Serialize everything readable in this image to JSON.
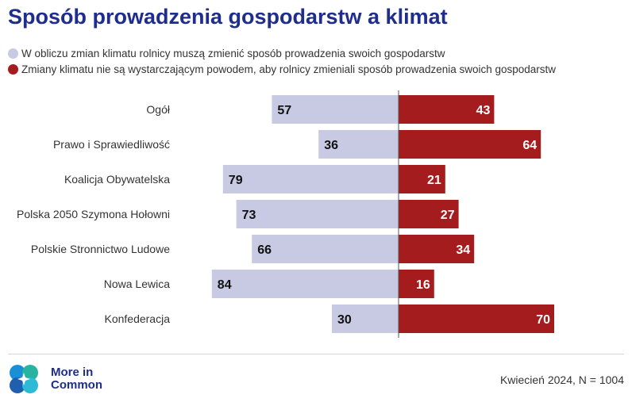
{
  "title": "Sposób prowadzenia gospodarstw a klimat",
  "legend": [
    {
      "label": "W obliczu zmian klimatu rolnicy muszą zmienić sposób prowadzenia swoich gospodarstw",
      "color": "#c8cae4"
    },
    {
      "label": "Zmiany klimatu nie są wystarczającym powodem, aby rolnicy zmieniali sposób prowadzenia swoich gospodarstw",
      "color": "#a51c1e"
    }
  ],
  "chart_data": {
    "type": "bar",
    "categories": [
      "Ogół",
      "Prawo i Sprawiedliwość",
      "Koalicja Obywatelska",
      "Polska 2050 Szymona Hołowni",
      "Polskie Stronnictwo Ludowe",
      "Nowa Lewica",
      "Konfederacja"
    ],
    "series": [
      {
        "name": "W obliczu zmian klimatu rolnicy muszą zmienić sposób prowadzenia swoich gospodarstw",
        "values": [
          57,
          36,
          79,
          73,
          66,
          84,
          30
        ],
        "color": "#c8cae4"
      },
      {
        "name": "Zmiany klimatu nie są wystarczającym powodem, aby rolnicy zmieniali sposób prowadzenia swoich gospodarstw",
        "values": [
          43,
          64,
          21,
          27,
          34,
          16,
          70
        ],
        "color": "#a51c1e"
      }
    ],
    "orientation": "horizontal diverging"
  },
  "logo": {
    "line1": "More in",
    "line2": "Common"
  },
  "source": "Kwiecień 2024, N = 1004"
}
